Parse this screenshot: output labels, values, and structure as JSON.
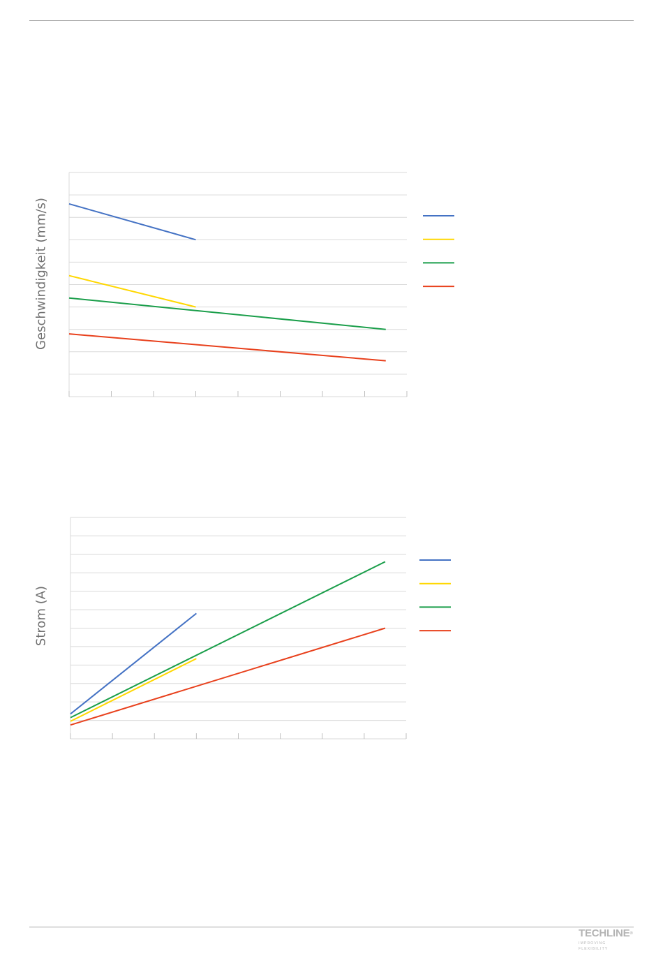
{
  "chart_data": [
    {
      "type": "line",
      "ylabel": "Geschwindigkeit (mm/s)",
      "xlabel": "",
      "title": "",
      "grid": true,
      "legend_placement": "right",
      "xlim": [
        0,
        8
      ],
      "ylim": [
        0,
        10
      ],
      "x_ticks": [
        0,
        1,
        2,
        3,
        4,
        5,
        6,
        7,
        8
      ],
      "y_gridlines": [
        0,
        1,
        2,
        3,
        4,
        5,
        6,
        7,
        8,
        9,
        10
      ],
      "series": [
        {
          "color": "#4472c4",
          "points": [
            [
              0,
              8.6
            ],
            [
              3,
              7.0
            ]
          ]
        },
        {
          "color": "#ffd700",
          "points": [
            [
              0,
              5.4
            ],
            [
              3,
              4.0
            ]
          ]
        },
        {
          "color": "#1a9e4a",
          "points": [
            [
              0,
              4.4
            ],
            [
              7.5,
              3.0
            ]
          ]
        },
        {
          "color": "#e8401c",
          "points": [
            [
              0,
              2.8
            ],
            [
              7.5,
              1.6
            ]
          ]
        }
      ]
    },
    {
      "type": "line",
      "ylabel": "Strom (A)",
      "xlabel": "",
      "title": "",
      "grid": true,
      "legend_placement": "right",
      "xlim": [
        0,
        8
      ],
      "ylim": [
        0,
        12
      ],
      "x_ticks": [
        0,
        1,
        2,
        3,
        4,
        5,
        6,
        7,
        8
      ],
      "y_gridlines": [
        0,
        1,
        2,
        3,
        4,
        5,
        6,
        7,
        8,
        9,
        10,
        11,
        12
      ],
      "series": [
        {
          "color": "#4472c4",
          "points": [
            [
              0,
              1.35
            ],
            [
              3,
              6.8
            ]
          ]
        },
        {
          "color": "#ffd700",
          "points": [
            [
              0,
              0.95
            ],
            [
              3,
              4.35
            ]
          ]
        },
        {
          "color": "#1a9e4a",
          "points": [
            [
              0,
              1.15
            ],
            [
              7.5,
              9.6
            ]
          ]
        },
        {
          "color": "#e8401c",
          "points": [
            [
              0,
              0.75
            ],
            [
              7.5,
              6.0
            ]
          ]
        }
      ]
    }
  ],
  "logo": {
    "brand": "TECHLINE",
    "registered": "®",
    "tagline": "IMPROVING FLEXIBILITY"
  }
}
